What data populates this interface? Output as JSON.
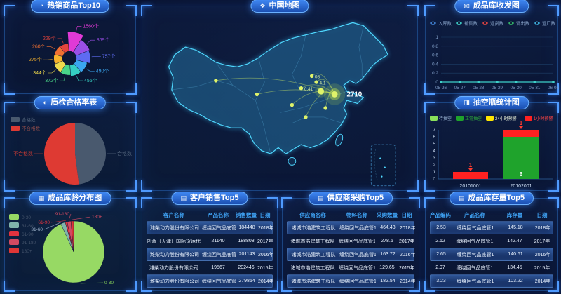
{
  "panels": {
    "hot": {
      "title": "热销商品Top10"
    },
    "quality": {
      "title": "质检合格率表"
    },
    "map": {
      "title": "中国地图"
    },
    "io": {
      "title": "成品库收发图"
    },
    "bottle": {
      "title": "抽空瓶统计图"
    },
    "age": {
      "title": "成品库龄分布图"
    },
    "customer": {
      "title": "客户销售Top5"
    },
    "supplier": {
      "title": "供应商采购Top5"
    },
    "stock": {
      "title": "成品库存量Top5"
    }
  },
  "chart_data": [
    {
      "id": "hot_products",
      "type": "pie-rose",
      "title": "热销商品Top10",
      "labels": [
        "229个",
        "260个",
        "275个",
        "344个",
        "372个",
        "455个",
        "490个",
        "757个",
        "869个",
        "1560个"
      ],
      "values": [
        229,
        260,
        275,
        344,
        372,
        455,
        490,
        757,
        869,
        1560
      ],
      "colors": [
        "#e5453c",
        "#f07032",
        "#f6b22c",
        "#efd94c",
        "#49d489",
        "#35cfc4",
        "#3aa6f0",
        "#5e6bf2",
        "#9a4fe8",
        "#e03ad6"
      ]
    },
    {
      "id": "quality_rate",
      "type": "pie",
      "title": "质检合格率表",
      "labels": [
        "合格数",
        "不合格数"
      ],
      "values": [
        48,
        52
      ],
      "colors": [
        "#49596e",
        "#de3a33"
      ]
    },
    {
      "id": "china_map",
      "type": "map",
      "title": "中国地图",
      "points": [
        {
          "x": 252,
          "y": 110,
          "r": 14,
          "label": "2710",
          "big": true
        },
        {
          "x": 234,
          "y": 106,
          "r": 8
        },
        {
          "x": 222,
          "y": 86,
          "r": 2.5,
          "label": "08"
        },
        {
          "x": 228,
          "y": 94,
          "r": 2.5,
          "label": "4.1"
        },
        {
          "x": 208,
          "y": 102,
          "r": 2.5,
          "label": "0.41"
        },
        {
          "x": 196,
          "y": 124,
          "r": 2.5
        },
        {
          "x": 150,
          "y": 110,
          "r": 2.5
        },
        {
          "x": 96,
          "y": 92,
          "r": 2.5
        },
        {
          "x": 214,
          "y": 140,
          "r": 2.5
        },
        {
          "x": 240,
          "y": 128,
          "r": 2.5
        }
      ],
      "lines": [
        [
          96,
          92,
          252,
          110
        ],
        [
          150,
          110,
          252,
          110
        ],
        [
          196,
          124,
          252,
          110
        ],
        [
          214,
          140,
          252,
          110
        ],
        [
          222,
          86,
          252,
          110
        ],
        [
          208,
          102,
          252,
          110
        ],
        [
          228,
          94,
          252,
          110
        ],
        [
          240,
          128,
          252,
          110
        ]
      ]
    },
    {
      "id": "warehouse_io",
      "type": "line",
      "title": "成品库收发图",
      "x": [
        "05-26",
        "05-27",
        "05-28",
        "05-29",
        "05-30",
        "05-31",
        "06-01"
      ],
      "yticks": [
        0,
        0.2,
        0.4,
        0.6,
        0.8,
        1
      ],
      "ylim": [
        0,
        1
      ],
      "series": [
        {
          "name": "入库数",
          "color": "#3f7fd0",
          "values": [
            0,
            0,
            0,
            0,
            0,
            0,
            0
          ]
        },
        {
          "name": "销售数",
          "color": "#3fd0c9",
          "values": [
            0,
            0,
            0,
            0,
            0,
            0,
            0
          ]
        },
        {
          "name": "退货数",
          "color": "#e04545",
          "values": [
            0,
            0,
            0,
            0,
            0,
            0,
            0
          ]
        },
        {
          "name": "调出数",
          "color": "#35b96a",
          "values": [
            0,
            0,
            0,
            0,
            0,
            0,
            0
          ]
        },
        {
          "name": "退厂数",
          "color": "#3fb3e0",
          "values": [
            0,
            0,
            0,
            0,
            0,
            0,
            0
          ]
        }
      ],
      "visible_series": "销售数"
    },
    {
      "id": "bottle_stats",
      "type": "bar-stacked",
      "title": "抽空瓶统计图",
      "categories": [
        "20101001",
        "20102001"
      ],
      "yticks": [
        0,
        1,
        2,
        3,
        4,
        5,
        6,
        7
      ],
      "ylim": [
        0,
        7
      ],
      "legend": [
        {
          "name": "待抽空",
          "color": "#8ae05a",
          "label_color": "#9db8d8"
        },
        {
          "name": "正常抽空",
          "color": "#1fa32c",
          "label_color": "#2fae3e"
        },
        {
          "name": "24小时预警",
          "color": "#ffe600",
          "label_color": "#e8f0d8"
        },
        {
          "name": "1小时预警",
          "color": "#ff2121",
          "label_color": "#ff4545"
        }
      ],
      "bars": [
        {
          "category": "20101001",
          "segments": [
            {
              "name": "1小时预警",
              "value": 1,
              "color": "#ff2121"
            }
          ],
          "top_label": "1"
        },
        {
          "category": "20102001",
          "segments": [
            {
              "name": "正常抽空",
              "value": 6,
              "color": "#1fa32c",
              "label": "6"
            },
            {
              "name": "1小时预警",
              "value": 1,
              "color": "#ff2121"
            }
          ],
          "top_label": "1"
        }
      ]
    },
    {
      "id": "age_distribution",
      "type": "pie",
      "title": "成品库龄分布图",
      "labels": [
        "0-30",
        "31-60",
        "61-90",
        "91-180",
        "180+"
      ],
      "values": [
        93.2,
        2.4,
        1.0,
        2.0,
        1.4
      ],
      "colors": [
        "#97d964",
        "#7fb3ab",
        "#e0333f",
        "#d24a62",
        "#de3636"
      ],
      "label_colors": [
        "#8bd65c",
        "#9fb4cc",
        "#e0333f",
        "#d24a62",
        "#d24a62"
      ]
    },
    {
      "id": "customer_sales",
      "type": "table",
      "title": "客户销售Top5",
      "headers": [
        "客户名称",
        "产品名称",
        "销售数量",
        "日期"
      ],
      "rows": [
        [
          "潍柴动力股份有限公司",
          "缠绕回气品底管1",
          "184448",
          "2018年"
        ],
        [
          "创蓝（天津）国际货运代理有限公司",
          "21140",
          "188808",
          "2017年"
        ],
        [
          "潍柴动力股份有限公司",
          "缠绕回气品底管1",
          "201143",
          "2016年"
        ],
        [
          "潍柴动力股份有限公司",
          "19567",
          "202446",
          "2015年"
        ],
        [
          "潍柴动力股份有限公司",
          "缠绕回气品底管1",
          "279854",
          "2014年"
        ]
      ]
    },
    {
      "id": "supplier_purchase",
      "type": "table",
      "title": "供应商采购Top5",
      "headers": [
        "供应商名称",
        "物料名称",
        "采购数量",
        "日期"
      ],
      "rows": [
        [
          "诸城市浩建筑工程队",
          "缠绕回气品底管1",
          "464.43",
          "2018年"
        ],
        [
          "诸城市浩建筑工程队",
          "缠绕回气品底管1",
          "278.5",
          "2017年"
        ],
        [
          "诸城市浩建筑工程队",
          "缠绕回气品底管1",
          "163.72",
          "2016年"
        ],
        [
          "诸城市浩建筑工程队",
          "缠绕回气品底管1",
          "129.65",
          "2015年"
        ],
        [
          "诸城市浩建筑工程队",
          "缠绕回气品底管1",
          "182.54",
          "2014年"
        ]
      ]
    },
    {
      "id": "product_stock",
      "type": "table",
      "title": "成品库存量Top5",
      "headers": [
        "产品编码",
        "产品名称",
        "库存量",
        "日期"
      ],
      "rows": [
        [
          "2.53",
          "缠绕回气品底管1",
          "145.18",
          "2018年"
        ],
        [
          "2.52",
          "缠绕回气品底管1",
          "142.47",
          "2017年"
        ],
        [
          "2.65",
          "缠绕回气品底管1",
          "140.61",
          "2016年"
        ],
        [
          "2.97",
          "缠绕回气品底管1",
          "134.45",
          "2015年"
        ],
        [
          "3.23",
          "缠绕回气品底管1",
          "103.22",
          "2014年"
        ]
      ]
    }
  ]
}
